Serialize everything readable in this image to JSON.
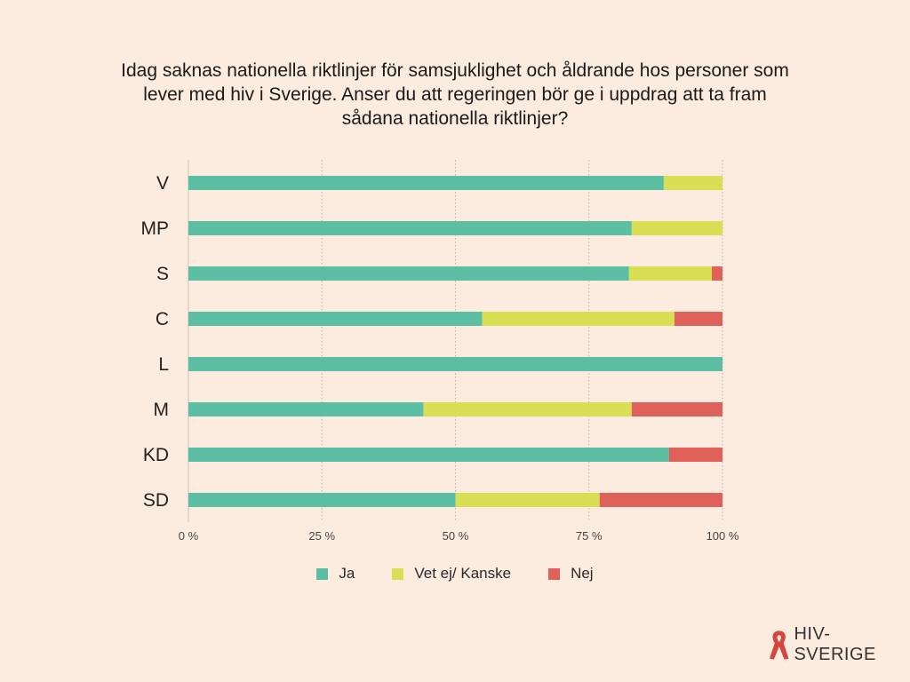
{
  "chart_data": {
    "type": "bar",
    "orientation": "horizontal",
    "stacked": true,
    "title_lines": [
      "Idag saknas nationella riktlinjer för samsjuklighet och åldrande hos personer som",
      "lever med hiv i Sverige. Anser du att regeringen bör ge i uppdrag att ta fram",
      "sådana nationella riktlinjer?"
    ],
    "categories": [
      "V",
      "MP",
      "S",
      "C",
      "L",
      "M",
      "KD",
      "SD"
    ],
    "series": [
      {
        "name": "Ja",
        "color": "#5cbfa3",
        "values": [
          89,
          83,
          82.5,
          55,
          100,
          44,
          90,
          50
        ]
      },
      {
        "name": "Vet ej/ Kanske",
        "color": "#d9df55",
        "values": [
          11,
          17,
          15.5,
          36,
          0,
          39,
          0,
          27
        ]
      },
      {
        "name": "Nej",
        "color": "#e0605a",
        "values": [
          0,
          0,
          2,
          9,
          0,
          17,
          10,
          23
        ]
      }
    ],
    "x_ticks": [
      "0 %",
      "25 %",
      "50 %",
      "75 %",
      "100 %"
    ],
    "xlim": [
      0,
      100
    ],
    "grid": true,
    "legend_position": "bottom"
  },
  "logo": {
    "text": "HIV-SVERIGE",
    "ribbon_color": "#d6453d"
  }
}
